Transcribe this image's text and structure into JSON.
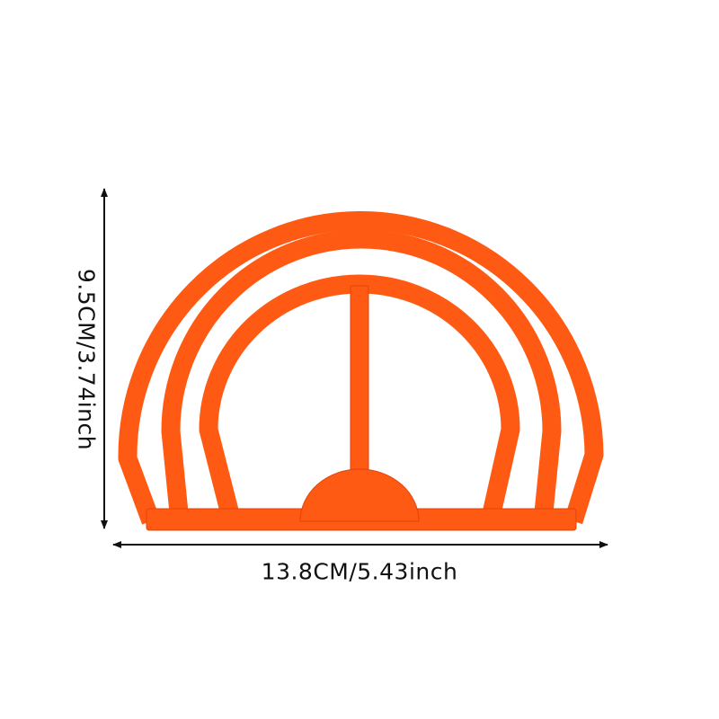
{
  "product": {
    "color": "#ff5a14",
    "edge_color": "#e0440a"
  },
  "dimensions": {
    "height_label": "9.5CM/3.74inch",
    "width_label": "13.8CM/5.43inch"
  }
}
